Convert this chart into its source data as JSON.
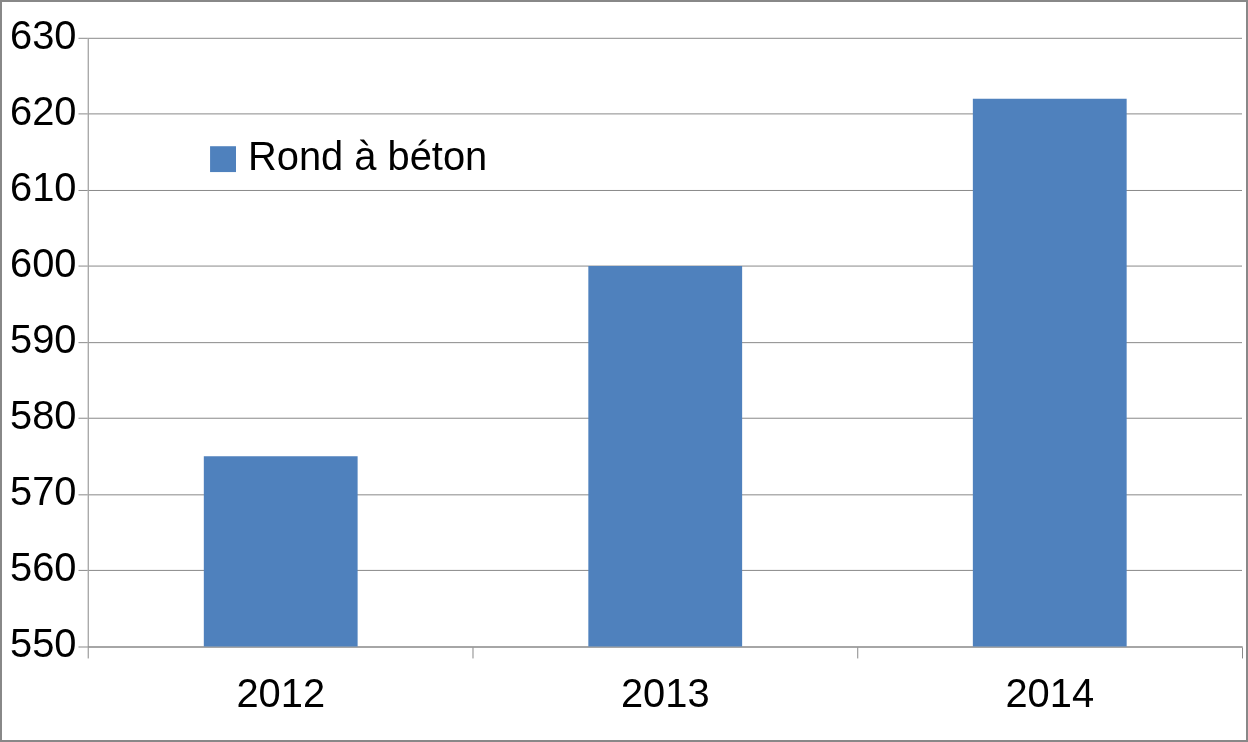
{
  "chart_data": {
    "type": "bar",
    "categories": [
      "2012",
      "2013",
      "2014"
    ],
    "series": [
      {
        "name": "Rond à béton",
        "color": "#4f81bd",
        "values": [
          575,
          600,
          622
        ]
      }
    ],
    "ylim": [
      550,
      630
    ],
    "yticks": [
      550,
      560,
      570,
      580,
      590,
      600,
      610,
      620,
      630
    ],
    "grid": "y",
    "legend": "top left"
  }
}
